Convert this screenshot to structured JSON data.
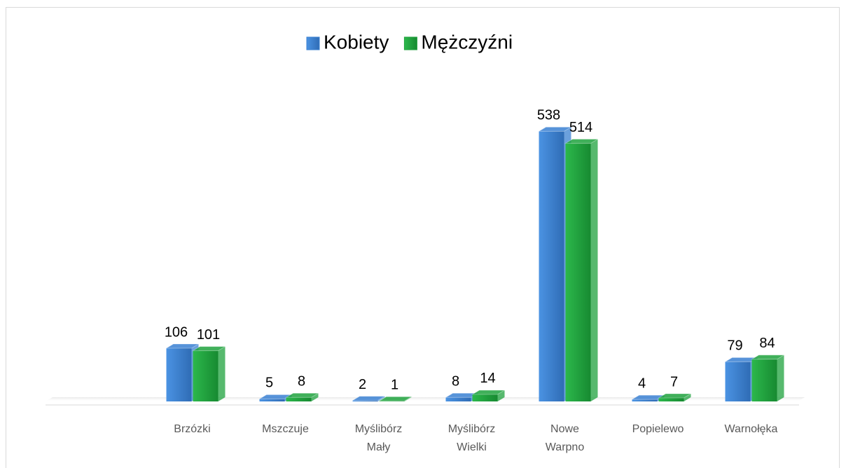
{
  "chart_data": {
    "type": "bar3d",
    "categories": [
      null,
      "Brzózki",
      "Mszczuje",
      "Myślibórz Mały",
      "Myślibórz Wielki",
      "Nowe Warpno",
      "Popielewo",
      "Warnołęka"
    ],
    "series": [
      {
        "name": "Kobiety",
        "color": "#3a80d2",
        "values": [
          null,
          106,
          5,
          2,
          8,
          538,
          4,
          79
        ]
      },
      {
        "name": "Mężczyźni",
        "color": "#1fa23d",
        "values": [
          null,
          101,
          8,
          1,
          14,
          514,
          7,
          84
        ]
      }
    ],
    "ylim": [
      0,
      600
    ],
    "legend": "top"
  }
}
